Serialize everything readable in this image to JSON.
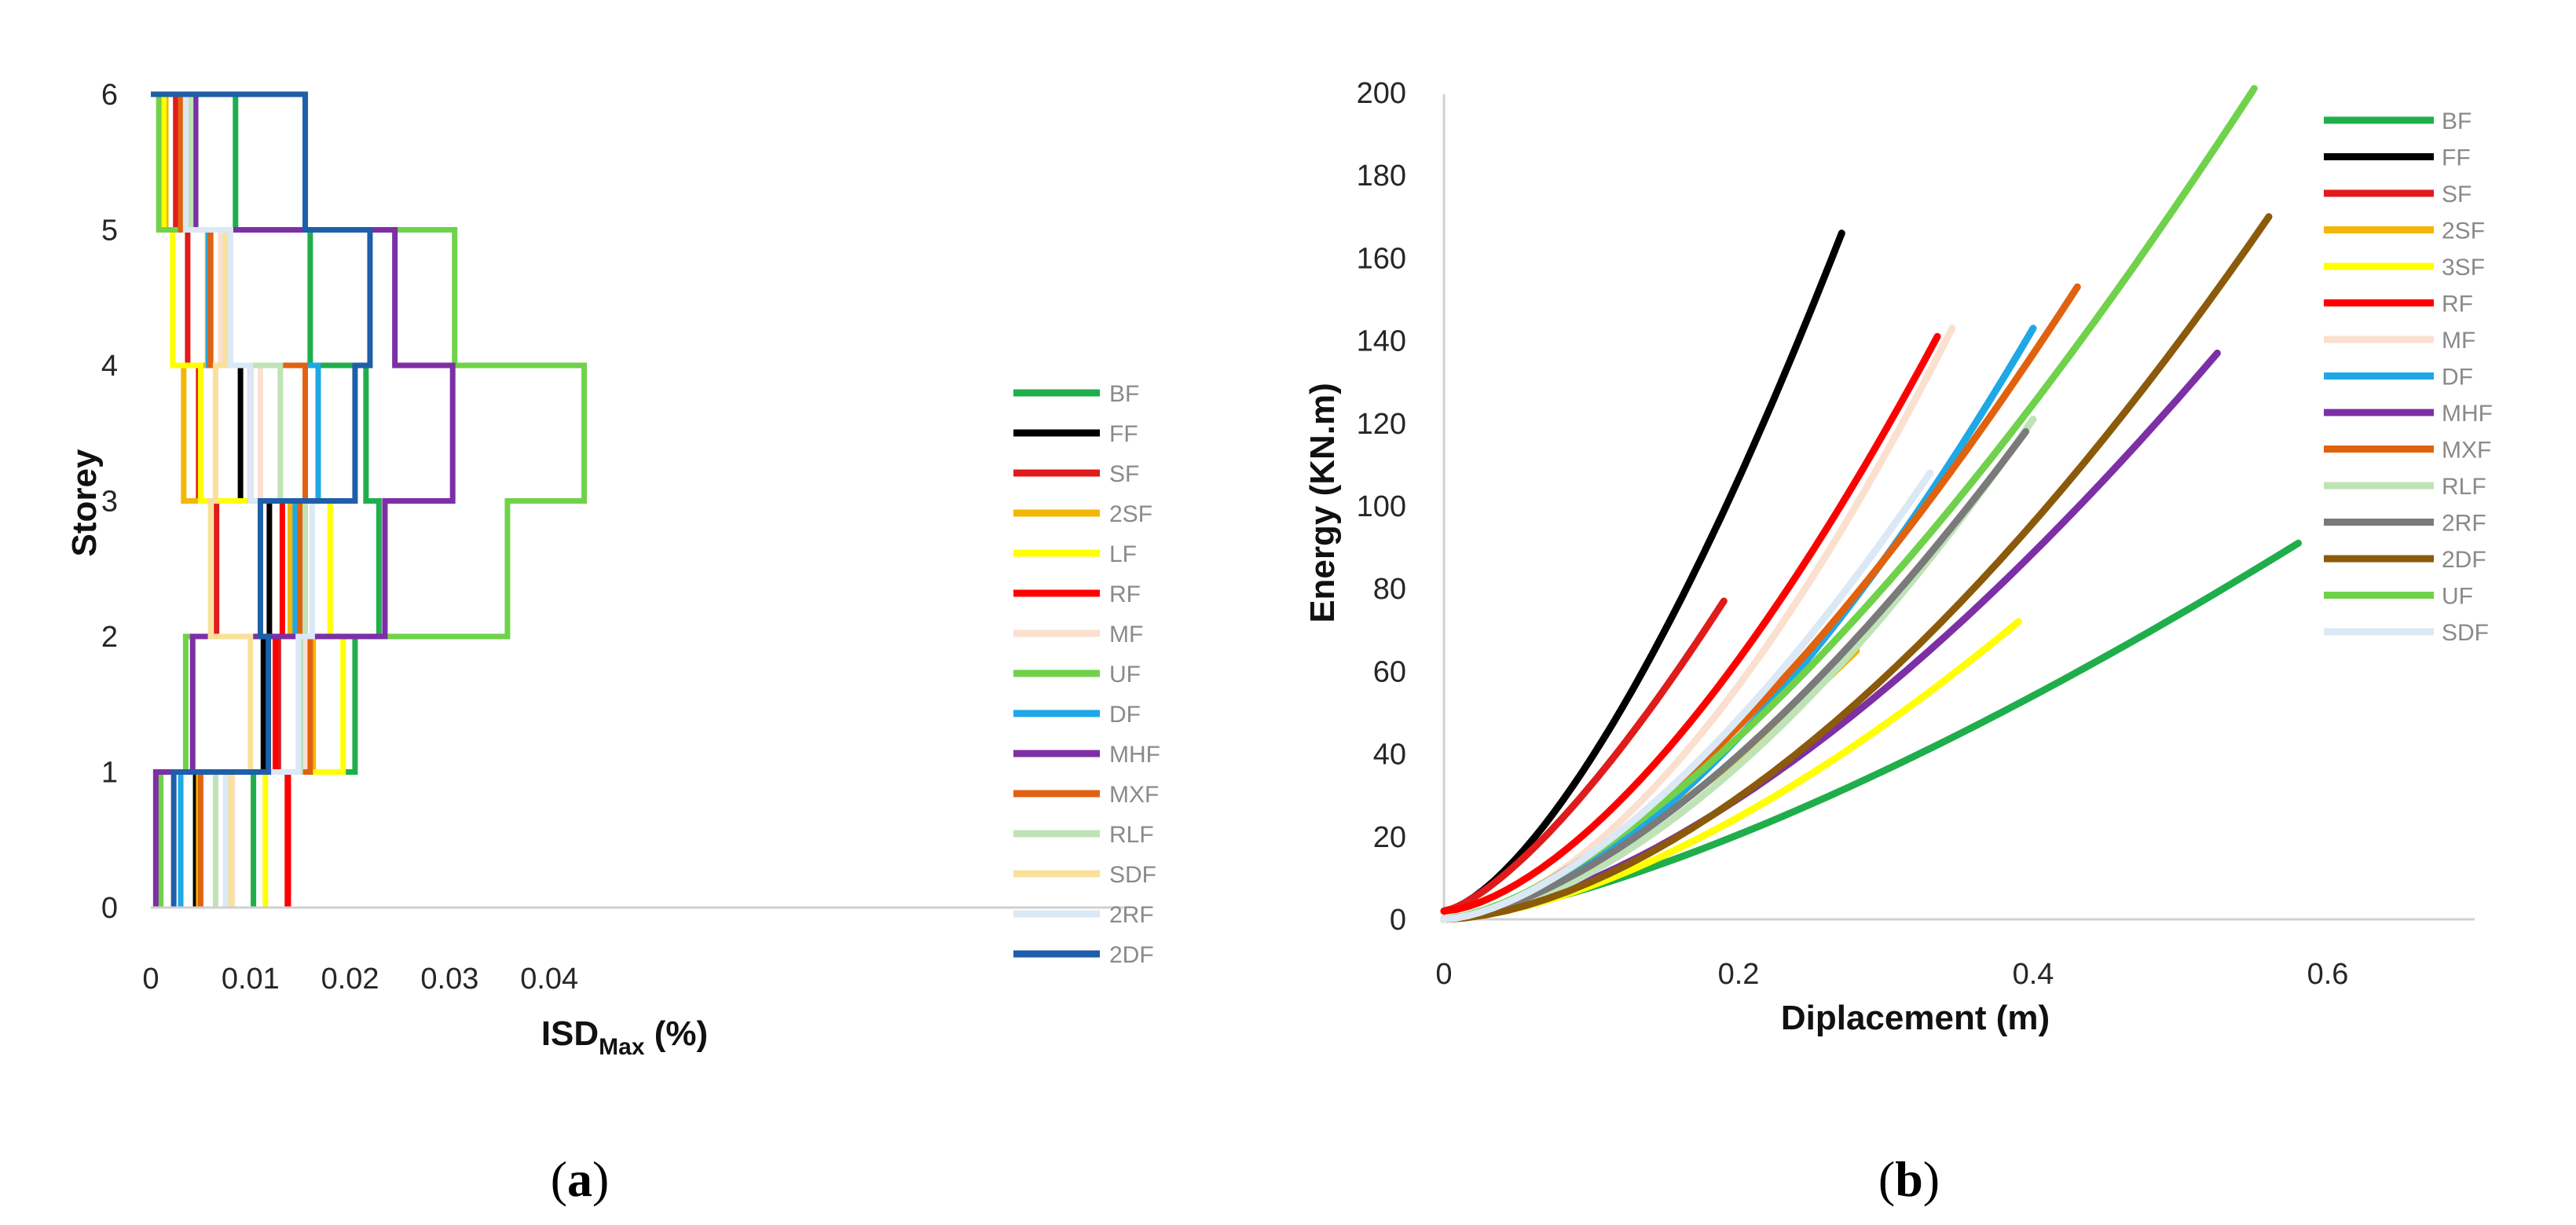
{
  "chart_data": [
    {
      "panel": "(a)",
      "type": "line",
      "xlabel": "ISD",
      "xlabel_sub": "Max",
      "xlabel_unit": " (%)",
      "ylabel": "Storey",
      "xlim": [
        0,
        0.045
      ],
      "ylim": [
        0,
        6
      ],
      "x_ticks": [
        0,
        0.01,
        0.02,
        0.03,
        0.04
      ],
      "x_tick_labels": [
        "0",
        "0.01",
        "0.02",
        "0.03",
        "0.04"
      ],
      "y_ticks": [
        0,
        1,
        2,
        3,
        4,
        5,
        6
      ],
      "y_tick_labels": [
        "0",
        "1",
        "2",
        "3",
        "4",
        "5",
        "6"
      ],
      "grid": false,
      "legend_position": "right",
      "series": [
        {
          "name": "BF",
          "color": "#1fae4b",
          "values": [
            0.0103,
            0.0205,
            0.0229,
            0.0216,
            0.016,
            0.0085
          ]
        },
        {
          "name": "FF",
          "color": "#000000",
          "values": [
            0.0045,
            0.0113,
            0.0119,
            0.009,
            0.0058,
            0.0037
          ]
        },
        {
          "name": "SF",
          "color": "#e01b1b",
          "values": [
            0.0137,
            0.0128,
            0.0066,
            0.0048,
            0.0037,
            0.0025
          ]
        },
        {
          "name": "2SF",
          "color": "#f2b705",
          "values": [
            0.0048,
            0.0163,
            0.014,
            0.0033,
            0.0057,
            0.0015
          ]
        },
        {
          "name": "LF",
          "color": "#ffff00",
          "values": [
            0.0115,
            0.0193,
            0.018,
            0.005,
            0.0022,
            0.0013
          ]
        },
        {
          "name": "RF",
          "color": "#ff0000",
          "values": [
            0.0138,
            0.0125,
            0.0132,
            0.01,
            0.006,
            0.0036
          ]
        },
        {
          "name": "MF",
          "color": "#fbe0cf",
          "values": [
            0.0082,
            0.0155,
            0.015,
            0.011,
            0.007,
            0.0042
          ]
        },
        {
          "name": "UF",
          "color": "#6fd24a",
          "values": [
            0.001,
            0.0035,
            0.0358,
            0.0435,
            0.0305,
            0.0008
          ]
        },
        {
          "name": "DF",
          "color": "#1ea8e6",
          "values": [
            0.003,
            0.015,
            0.0145,
            0.0168,
            0.0058,
            0.004
          ]
        },
        {
          "name": "MHF",
          "color": "#7d2fa6",
          "values": [
            0.0005,
            0.0042,
            0.0235,
            0.0303,
            0.0245,
            0.0045
          ]
        },
        {
          "name": "MXF",
          "color": "#e0620f",
          "values": [
            0.005,
            0.016,
            0.015,
            0.0155,
            0.006,
            0.003
          ]
        },
        {
          "name": "RLF",
          "color": "#bfe3b6",
          "values": [
            0.0065,
            0.015,
            0.0155,
            0.013,
            0.0075,
            0.004
          ]
        },
        {
          "name": "SDF",
          "color": "#f9e19b",
          "values": [
            0.008,
            0.01,
            0.006,
            0.0065,
            0.0075,
            0.0035
          ]
        },
        {
          "name": "2RF",
          "color": "#dbe8f5",
          "values": [
            0.0075,
            0.0148,
            0.0162,
            0.01,
            0.008,
            0.0035
          ]
        },
        {
          "name": "2DF",
          "color": "#1f5ea8",
          "values": [
            0.0023,
            0.0118,
            0.011,
            0.0205,
            0.022,
            0.0155
          ]
        }
      ]
    },
    {
      "panel": "(b)",
      "type": "line",
      "xlabel": "Diplacement (m)",
      "ylabel": "Energy (KN.m)",
      "xlim": [
        0,
        0.7
      ],
      "ylim": [
        0,
        200
      ],
      "x_ticks": [
        0,
        0.2,
        0.4,
        0.6
      ],
      "x_tick_labels": [
        "0",
        "0.2",
        "0.4",
        "0.6"
      ],
      "y_ticks": [
        0,
        20,
        40,
        60,
        80,
        100,
        120,
        140,
        160,
        180,
        200
      ],
      "y_tick_labels": [
        "0",
        "20",
        "40",
        "60",
        "80",
        "100",
        "120",
        "140",
        "160",
        "180",
        "200"
      ],
      "grid": false,
      "legend_position": "top-right",
      "series": [
        {
          "name": "BF",
          "color": "#1fae4b",
          "x_end": 0.58,
          "y_end": 91,
          "y0": 0,
          "p": 1.4
        },
        {
          "name": "FF",
          "color": "#000000",
          "x_end": 0.27,
          "y_end": 166,
          "y0": 2,
          "p": 1.5
        },
        {
          "name": "SF",
          "color": "#e01b1b",
          "x_end": 0.19,
          "y_end": 77,
          "y0": 2,
          "p": 1.4
        },
        {
          "name": "2SF",
          "color": "#f2b705",
          "x_end": 0.28,
          "y_end": 65,
          "y0": 0,
          "p": 1.5
        },
        {
          "name": "3SF",
          "color": "#ffff00",
          "x_end": 0.39,
          "y_end": 72,
          "y0": 0,
          "p": 1.6
        },
        {
          "name": "RF",
          "color": "#ff0000",
          "x_end": 0.335,
          "y_end": 141,
          "y0": 2,
          "p": 1.6
        },
        {
          "name": "MF",
          "color": "#fbe0cf",
          "x_end": 0.345,
          "y_end": 143,
          "y0": 0,
          "p": 1.7
        },
        {
          "name": "DF",
          "color": "#1ea8e6",
          "x_end": 0.4,
          "y_end": 143,
          "y0": 0,
          "p": 1.7
        },
        {
          "name": "MHF",
          "color": "#7d2fa6",
          "x_end": 0.525,
          "y_end": 137,
          "y0": 0,
          "p": 1.6
        },
        {
          "name": "MXF",
          "color": "#e0620f",
          "x_end": 0.43,
          "y_end": 153,
          "y0": 0,
          "p": 1.55
        },
        {
          "name": "RLF",
          "color": "#bfe3b6",
          "x_end": 0.4,
          "y_end": 121,
          "y0": 0,
          "p": 1.7
        },
        {
          "name": "2RF",
          "color": "#7a7a7a",
          "x_end": 0.395,
          "y_end": 118,
          "y0": 0,
          "p": 1.6
        },
        {
          "name": "2DF",
          "color": "#8b5a0a",
          "x_end": 0.56,
          "y_end": 170,
          "y0": 0,
          "p": 1.7
        },
        {
          "name": "UF",
          "color": "#6fd24a",
          "x_end": 0.55,
          "y_end": 201,
          "y0": 0,
          "p": 1.5
        },
        {
          "name": "SDF",
          "color": "#dbe8f5",
          "x_end": 0.33,
          "y_end": 108,
          "y0": 0,
          "p": 1.6
        }
      ]
    }
  ]
}
